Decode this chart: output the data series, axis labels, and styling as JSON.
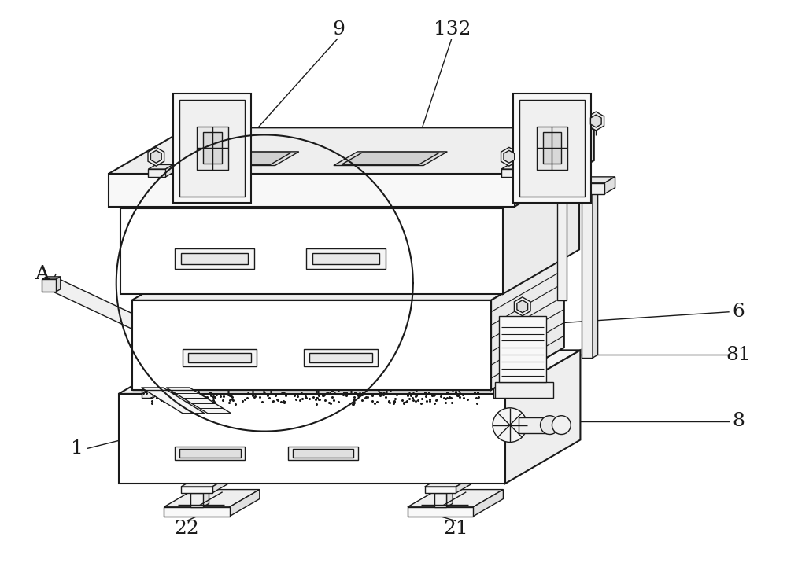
{
  "bg_color": "#ffffff",
  "lc": "#1a1a1a",
  "lw": 1.0,
  "lw2": 1.5,
  "figsize": [
    10.0,
    7.25
  ],
  "dpi": 100
}
